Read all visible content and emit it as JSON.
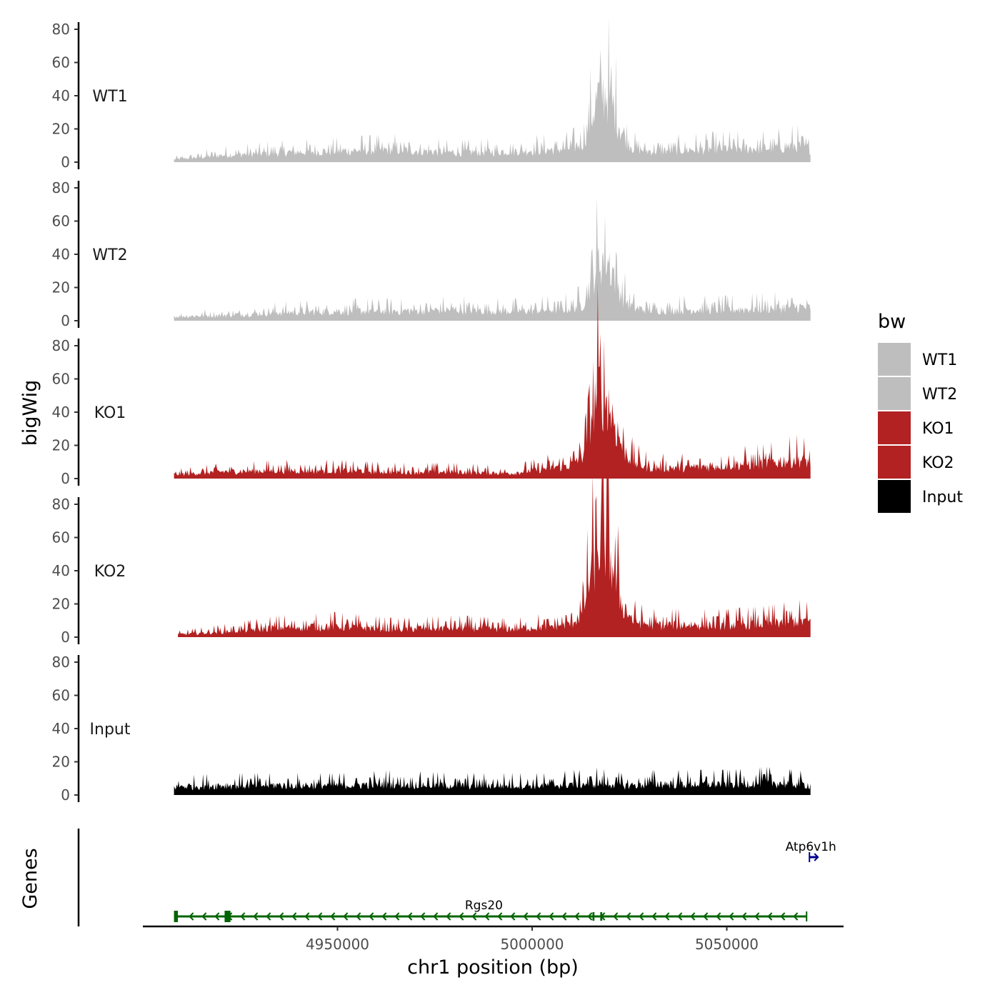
{
  "chart_data": {
    "type": "area",
    "subtype": "genome-browser-coverage-tracks",
    "title": "",
    "ylabel": "bigWig",
    "genes_ylabel": "Genes",
    "xlabel": "chr1 position (bp)",
    "xlim": [
      4900000,
      5080000
    ],
    "x_ticks": [
      4950000,
      5000000,
      5050000
    ],
    "x_tick_labels": [
      "4950000",
      "5000000",
      "5050000"
    ],
    "ylim": [
      0,
      80
    ],
    "y_ticks": [
      0,
      20,
      40,
      60,
      80
    ],
    "y_tick_labels": [
      "0",
      "20",
      "40",
      "60",
      "80"
    ],
    "grid": false,
    "legend": {
      "title": "bw",
      "placement": "right",
      "entries": [
        {
          "label": "WT1",
          "color": "#bebebe"
        },
        {
          "label": "WT2",
          "color": "#bebebe"
        },
        {
          "label": "KO1",
          "color": "#b22222"
        },
        {
          "label": "KO2",
          "color": "#b22222"
        },
        {
          "label": "Input",
          "color": "#000000"
        }
      ]
    },
    "series": [
      {
        "name": "WT1",
        "color": "#bebebe",
        "x": [
          4908000,
          4920000,
          4935000,
          4950000,
          4965000,
          4980000,
          4995000,
          5005000,
          5010000,
          5013000,
          5015000,
          5017000,
          5019000,
          5021000,
          5023000,
          5026000,
          5030000,
          5040000,
          5050000,
          5060000,
          5068000,
          5071500
        ],
        "y": [
          2,
          5,
          7,
          8,
          9,
          7,
          8,
          9,
          10,
          14,
          30,
          48,
          50,
          38,
          22,
          10,
          8,
          9,
          10,
          10,
          12,
          10
        ]
      },
      {
        "name": "WT2",
        "color": "#bebebe",
        "x": [
          4908000,
          4920000,
          4935000,
          4950000,
          4965000,
          4980000,
          4995000,
          5005000,
          5010000,
          5013000,
          5015000,
          5017000,
          5019000,
          5021000,
          5023000,
          5026000,
          5030000,
          5040000,
          5050000,
          5060000,
          5068000,
          5071500
        ],
        "y": [
          3,
          4,
          6,
          7,
          7,
          8,
          7,
          8,
          9,
          12,
          28,
          42,
          46,
          34,
          18,
          9,
          8,
          8,
          8,
          9,
          10,
          9
        ]
      },
      {
        "name": "KO1",
        "color": "#b22222",
        "x": [
          4908000,
          4920000,
          4935000,
          4950000,
          4965000,
          4980000,
          4995000,
          5005000,
          5010000,
          5013000,
          5015000,
          5017000,
          5019000,
          5021000,
          5023000,
          5026000,
          5030000,
          5040000,
          5050000,
          5060000,
          5068000,
          5071500
        ],
        "y": [
          3,
          5,
          6,
          6,
          5,
          5,
          4,
          8,
          10,
          18,
          44,
          64,
          58,
          42,
          24,
          12,
          8,
          8,
          10,
          11,
          14,
          12
        ]
      },
      {
        "name": "KO2",
        "color": "#b22222",
        "x": [
          4909000,
          4920000,
          4935000,
          4950000,
          4965000,
          4980000,
          4995000,
          5005000,
          5010000,
          5013000,
          5015000,
          5017000,
          5019000,
          5021000,
          5023000,
          5026000,
          5030000,
          5040000,
          5050000,
          5060000,
          5068000,
          5071500
        ],
        "y": [
          2,
          4,
          7,
          8,
          6,
          7,
          6,
          8,
          10,
          18,
          46,
          66,
          70,
          48,
          24,
          12,
          9,
          9,
          9,
          10,
          12,
          11
        ]
      },
      {
        "name": "Input",
        "color": "#000000",
        "x": [
          4908000,
          4920000,
          4935000,
          4950000,
          4965000,
          4980000,
          4995000,
          5005000,
          5010000,
          5013000,
          5015000,
          5017000,
          5019000,
          5021000,
          5023000,
          5026000,
          5030000,
          5040000,
          5050000,
          5060000,
          5068000,
          5071500
        ],
        "y": [
          6,
          7,
          7,
          7,
          8,
          7,
          7,
          7,
          8,
          8,
          8,
          9,
          8,
          8,
          7,
          7,
          8,
          8,
          8,
          9,
          8,
          7
        ]
      }
    ],
    "genes": [
      {
        "name": "Rgs20",
        "strand": "-",
        "color": "#006400",
        "start": 4908000,
        "end": 5070500,
        "exons": [
          [
            4908000,
            4909000
          ],
          [
            4921000,
            4922500
          ],
          [
            5015500,
            5016000
          ],
          [
            5017500,
            5018000
          ]
        ]
      },
      {
        "name": "Atp6v1h",
        "strand": "+",
        "color": "#00008b",
        "start": 5070500,
        "end": 5073000,
        "exons": [
          [
            5070500,
            5071000
          ]
        ]
      }
    ]
  }
}
